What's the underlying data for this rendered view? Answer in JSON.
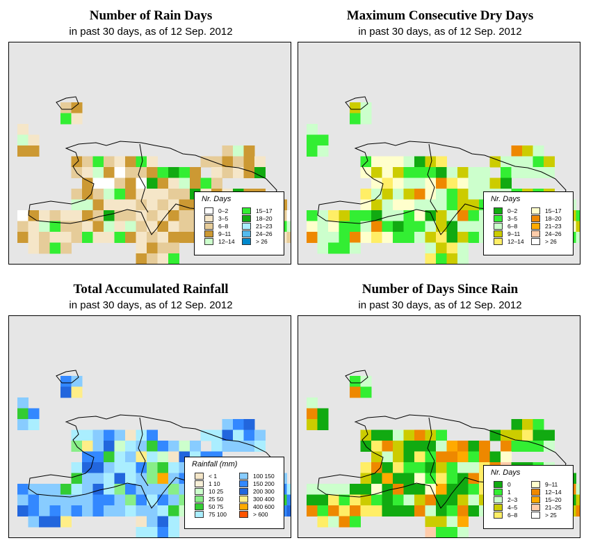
{
  "colors": {
    "sea": "#e6e6e6",
    "border": "#000000",
    "rain_days": [
      "#ffffff",
      "#f5e6c8",
      "#e6cc99",
      "#cc9933",
      "#ccffcc",
      "#33ee33",
      "#11aa11",
      "#aaeeff",
      "#55bbee",
      "#0088cc"
    ],
    "dry_days": [
      "#11aa11",
      "#33ee33",
      "#ccffcc",
      "#cccc00",
      "#ffee66",
      "#ffffcc",
      "#ee8800",
      "#ffaa00",
      "#ffccaa",
      "#ffffff"
    ],
    "rainfall": [
      "#f5e6c8",
      "#f8f0d8",
      "#ccffcc",
      "#88ee88",
      "#33cc33",
      "#aaeeff",
      "#88ccff",
      "#3388ff",
      "#2266dd",
      "#ffee88",
      "#ffaa00",
      "#ff5500"
    ],
    "since_rain": [
      "#11aa11",
      "#33ee33",
      "#ccffcc",
      "#cccc00",
      "#ffee66",
      "#ffffcc",
      "#ee8800",
      "#ffaa00",
      "#ffccaa",
      "#ffffff"
    ]
  },
  "panels": [
    {
      "id": "rain-days",
      "title": "Number of Rain Days",
      "subtitle": "in past 30 days, as of  12 Sep. 2012",
      "legend_title": "Nr. Days",
      "legend_items": [
        "0–2",
        "3–5",
        "6–8",
        "9–11",
        "12–14",
        "15–17",
        "18–20",
        "21–23",
        "24–26",
        "> 26"
      ]
    },
    {
      "id": "dry-days",
      "title": "Maximum Consecutive Dry Days",
      "subtitle": "in past 30 days, as of  12 Sep. 2012",
      "legend_title": "Nr. Days",
      "legend_items": [
        "0–2",
        "3–5",
        "6–8",
        "9–11",
        "12–14",
        "15–17",
        "18–20",
        "21–23",
        "24–26",
        "> 26"
      ]
    },
    {
      "id": "rainfall",
      "title": "Total Accumulated Rainfall",
      "subtitle": "in past 30 days, as of  12 Sep. 2012",
      "legend_title": "Rainfall (mm)",
      "legend_items": [
        "< 1",
        "1   10",
        "10   25",
        "25   50",
        "50   75",
        "75  100",
        "100  150",
        "150  200",
        "200  300",
        "300  400",
        "400  600",
        "> 600"
      ]
    },
    {
      "id": "since-rain",
      "title": "Number of Days Since Rain",
      "subtitle": "in past 30 days, as of  12 Sep. 2012",
      "legend_title": "Nr. Days",
      "legend_items": [
        "0",
        "1",
        "2–3",
        "4–5",
        "6–8",
        "9–11",
        "12–14",
        "15–20",
        "21–25",
        "> 25"
      ]
    }
  ]
}
